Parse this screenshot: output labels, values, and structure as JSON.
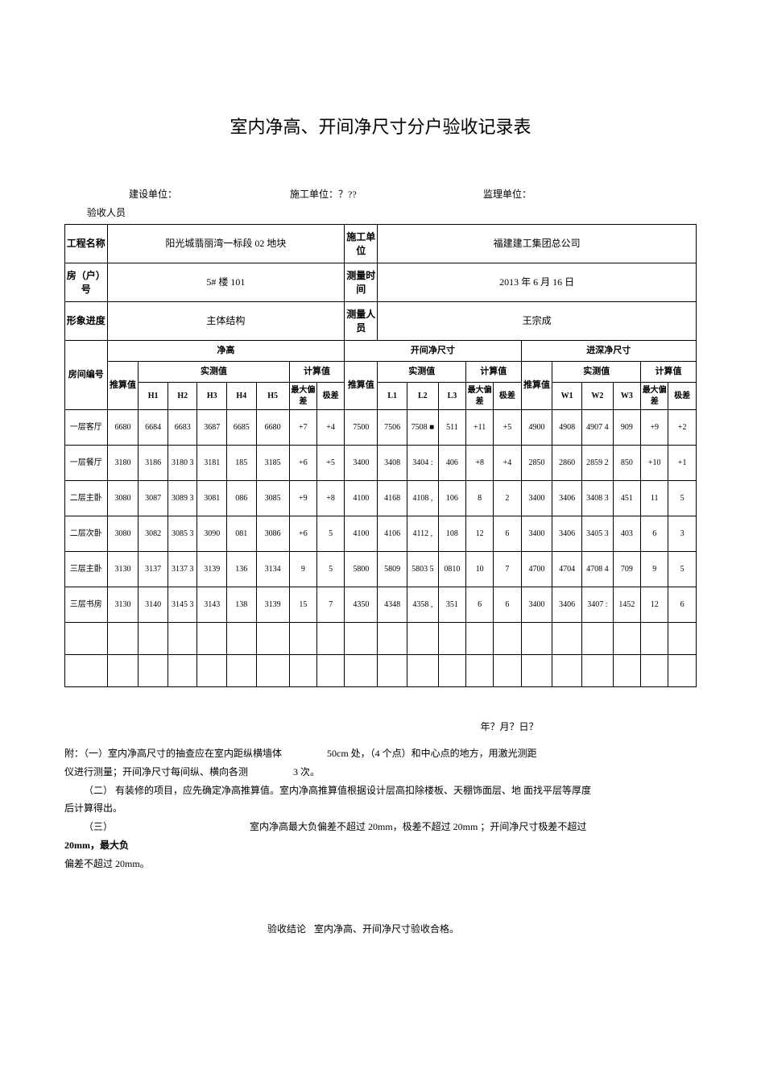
{
  "title": "室内净高、开间净尺寸分户验收记录表",
  "header": {
    "left_anchor": "验收人员",
    "build_label": "建设单位：",
    "construct_label": "施工单位：？??",
    "supervise_label": "监理单位："
  },
  "info": {
    "proj_name_label": "工程名称",
    "proj_name": "阳光城翡丽湾一标段 02 地块",
    "construct_unit_label": "施工单位",
    "construct_unit": "福建建工集团总公司",
    "house_no_label": "房（户）号",
    "house_no": "5# 楼 101",
    "measure_time_label": "测量时间",
    "measure_time": "2013 年 6 月 16 日",
    "progress_label": "形象进度",
    "progress": "主体结构",
    "measure_staff_label": "测量人员",
    "measure_staff": "王宗成"
  },
  "section_labels": {
    "room_no": "房间编号",
    "net_height": "净高",
    "span": "开间净尺寸",
    "depth": "进深净尺寸",
    "est": "推算值",
    "measured": "实测值",
    "calc": "计算值",
    "H1": "H1",
    "H2": "H2",
    "H3": "H3",
    "H4": "H4",
    "H5": "H5",
    "max_dev": "最大偏差",
    "range": "极差",
    "L1": "L1",
    "L2": "L2",
    "L3": "L3",
    "W1": "W1",
    "W2": "W2",
    "W3": "W3"
  },
  "rows": [
    {
      "room": "一层客厅",
      "h_est": "6680",
      "h": [
        "6684",
        "6683",
        "3687",
        "6685",
        "6680"
      ],
      "h_calc": [
        "+7",
        "+4"
      ],
      "l_est": "7500",
      "l": [
        "7506",
        "7508 ■",
        "511"
      ],
      "l_calc": [
        "+11",
        "+5"
      ],
      "w_est": "4900",
      "w": [
        "4908",
        "4907 4",
        "909"
      ],
      "w_calc": [
        "+9",
        "+2"
      ]
    },
    {
      "room": "一层餐厅",
      "h_est": "3180",
      "h": [
        "3186",
        "3180 3",
        "3181",
        "185",
        "3185"
      ],
      "h_calc": [
        "+6",
        "+5"
      ],
      "l_est": "3400",
      "l": [
        "3408",
        "3404 :",
        "406"
      ],
      "l_calc": [
        "+8",
        "+4"
      ],
      "w_est": "2850",
      "w": [
        "2860",
        "2859 2",
        "850"
      ],
      "w_calc": [
        "+10",
        "+1"
      ]
    },
    {
      "room": "二层主卧",
      "h_est": "3080",
      "h": [
        "3087",
        "3089 3",
        "3081",
        "086",
        "3085"
      ],
      "h_calc": [
        "+9",
        "+8"
      ],
      "l_est": "4100",
      "l": [
        "4168",
        "4108 ,",
        "106"
      ],
      "l_calc": [
        "8",
        "2"
      ],
      "w_est": "3400",
      "w": [
        "3406",
        "3408 3",
        "451"
      ],
      "w_calc": [
        "11",
        "5"
      ]
    },
    {
      "room": "二层次卧",
      "h_est": "3080",
      "h": [
        "3082",
        "3085 3",
        "3090",
        "081",
        "3086"
      ],
      "h_calc": [
        "+6",
        "5"
      ],
      "l_est": "4100",
      "l": [
        "4106",
        "4112 ,",
        "108"
      ],
      "l_calc": [
        "12",
        "6"
      ],
      "w_est": "3400",
      "w": [
        "3406",
        "3405 3",
        "403"
      ],
      "w_calc": [
        "6",
        "3"
      ]
    },
    {
      "room": "三层主卧",
      "h_est": "3130",
      "h": [
        "3137",
        "3137 3",
        "3139",
        "136",
        "3134"
      ],
      "h_calc": [
        "9",
        "5"
      ],
      "l_est": "5800",
      "l": [
        "5809",
        "5803 5",
        "0810"
      ],
      "l_calc": [
        "10",
        "7"
      ],
      "w_est": "4700",
      "w": [
        "4704",
        "4708 4",
        "709"
      ],
      "w_calc": [
        "9",
        "5"
      ]
    },
    {
      "room": "三层书房",
      "h_est": "3130",
      "h": [
        "3140",
        "3145 3",
        "3143",
        "138",
        "3139"
      ],
      "h_calc": [
        "15",
        "7"
      ],
      "l_est": "4350",
      "l": [
        "4348",
        "4358 ,",
        "351"
      ],
      "l_calc": [
        "6",
        "6"
      ],
      "w_est": "3400",
      "w": [
        "3406",
        "3407 :",
        "1452"
      ],
      "w_calc": [
        "12",
        "6"
      ]
    }
  ],
  "date_line": "年？月？日？",
  "notes": {
    "l1a": "附：（一）室内净高尺寸的抽查应在室内距纵横墙体",
    "l1b": "50cm 处，（4 个点）和中心点的地方，用激光测距",
    "l2": "仪进行测量；开间净尺寸每间纵、横向各测",
    "l2b": "3 次。",
    "l3": "（二）  有装修的项目，应先确定净高推算值。室内净高推算值根据设计层高扣除楼板、天棚饰面层、地  面找平层等厚度",
    "l3b": "后计算得出。",
    "l4a": "（三）",
    "l4b": "室内净高最大负偏差不超过  20mm，极差不超过  20mm ；开间净尺寸极差不超过",
    "l5": "20mm，最大负",
    "l6": "偏差不超过 20mm。"
  },
  "footer": {
    "left": "验收结论",
    "right": "室内净高、开间净尺寸验收合格。"
  },
  "colors": {
    "border": "#000000",
    "bg": "#ffffff",
    "text": "#000000"
  }
}
